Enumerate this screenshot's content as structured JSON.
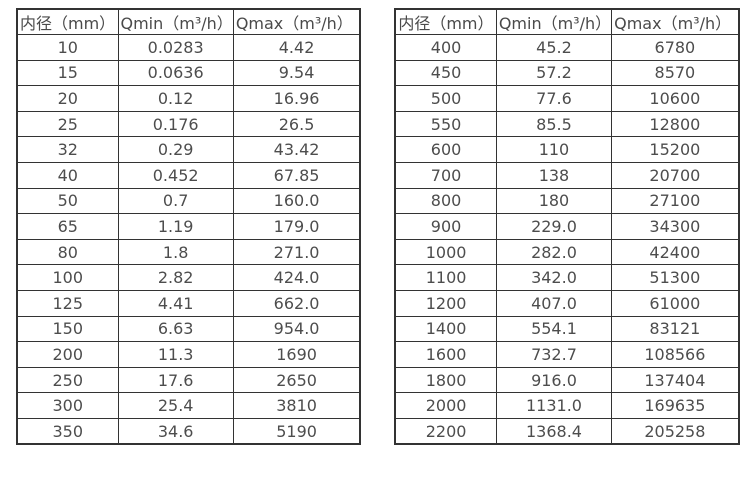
{
  "colors": {
    "background": "#ffffff",
    "table_border": "#333333",
    "text": "#4d4d4d"
  },
  "tables": [
    {
      "name": "small-diameters",
      "headers": [
        "内径（mm）",
        "Qmin（m³/h）",
        "Qmax（m³/h）"
      ],
      "rows": [
        [
          "10",
          "0.0283",
          "4.42"
        ],
        [
          "15",
          "0.0636",
          "9.54"
        ],
        [
          "20",
          "0.12",
          "16.96"
        ],
        [
          "25",
          "0.176",
          "26.5"
        ],
        [
          "32",
          "0.29",
          "43.42"
        ],
        [
          "40",
          "0.452",
          "67.85"
        ],
        [
          "50",
          "0.7",
          "160.0"
        ],
        [
          "65",
          "1.19",
          "179.0"
        ],
        [
          "80",
          "1.8",
          "271.0"
        ],
        [
          "100",
          "2.82",
          "424.0"
        ],
        [
          "125",
          "4.41",
          "662.0"
        ],
        [
          "150",
          "6.63",
          "954.0"
        ],
        [
          "200",
          "11.3",
          "1690"
        ],
        [
          "250",
          "17.6",
          "2650"
        ],
        [
          "300",
          "25.4",
          "3810"
        ],
        [
          "350",
          "34.6",
          "5190"
        ]
      ]
    },
    {
      "name": "large-diameters",
      "headers": [
        "内径（mm）",
        "Qmin（m³/h）",
        "Qmax（m³/h）"
      ],
      "rows": [
        [
          "400",
          "45.2",
          "6780"
        ],
        [
          "450",
          "57.2",
          "8570"
        ],
        [
          "500",
          "77.6",
          "10600"
        ],
        [
          "550",
          "85.5",
          "12800"
        ],
        [
          "600",
          "110",
          "15200"
        ],
        [
          "700",
          "138",
          "20700"
        ],
        [
          "800",
          "180",
          "27100"
        ],
        [
          "900",
          "229.0",
          "34300"
        ],
        [
          "1000",
          "282.0",
          "42400"
        ],
        [
          "1100",
          "342.0",
          "51300"
        ],
        [
          "1200",
          "407.0",
          "61000"
        ],
        [
          "1400",
          "554.1",
          "83121"
        ],
        [
          "1600",
          "732.7",
          "108566"
        ],
        [
          "1800",
          "916.0",
          "137404"
        ],
        [
          "2000",
          "1131.0",
          "169635"
        ],
        [
          "2200",
          "1368.4",
          "205258"
        ]
      ]
    }
  ]
}
